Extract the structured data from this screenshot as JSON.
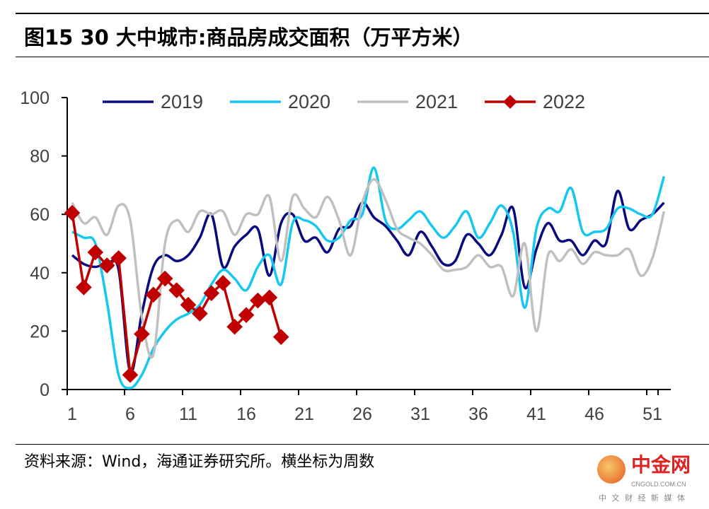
{
  "title": "图15 30 大中城市:商品房成交面积（万平方米）",
  "source": "资料来源：Wind，海通证券研究所。横坐标为周数",
  "watermark": {
    "name": "中金网",
    "url": "CNGOLD.COM.CN",
    "tagline": "中 文 财 经 新 媒 体"
  },
  "chart_data": {
    "type": "line",
    "title": "",
    "xlabel": "",
    "ylabel": "",
    "ylim": [
      0,
      100
    ],
    "xlim": [
      1,
      52
    ],
    "y_ticks": [
      "0",
      "20",
      "40",
      "60",
      "80",
      "100"
    ],
    "x_ticks": [
      "1",
      "6",
      "11",
      "16",
      "21",
      "26",
      "31",
      "36",
      "41",
      "46",
      "51"
    ],
    "legend": "top",
    "grid": false,
    "series": [
      {
        "name": "2019",
        "color": "#0a0a80",
        "marker": "none",
        "values": [
          46,
          43,
          42,
          43,
          41,
          6,
          26,
          42,
          46,
          44,
          46,
          52,
          60,
          42,
          49,
          53,
          55,
          39,
          57,
          60,
          51,
          52,
          47,
          55,
          56,
          64,
          59,
          56,
          51,
          46,
          54,
          49,
          43,
          44,
          53,
          50,
          46,
          53,
          62,
          35,
          48,
          57,
          51,
          51,
          46,
          51,
          50,
          68,
          55,
          58,
          60,
          64
        ]
      },
      {
        "name": "2020",
        "color": "#16c8f0",
        "marker": "none",
        "values": [
          54,
          52,
          50,
          30,
          5,
          0.5,
          5,
          14,
          20,
          24,
          26,
          29,
          36,
          41,
          38,
          34,
          42,
          46,
          36,
          57,
          58,
          56,
          51,
          52,
          58,
          60,
          76,
          58,
          55,
          58,
          61,
          56,
          52,
          56,
          61,
          52,
          57,
          63,
          54,
          28,
          55,
          62,
          61,
          69,
          54,
          54,
          55,
          62,
          62,
          60,
          60,
          73
        ]
      },
      {
        "name": "2021",
        "color": "#c0c0c0",
        "marker": "none",
        "values": [
          64,
          57,
          59,
          53,
          63,
          58,
          25,
          12,
          50,
          58,
          54,
          61,
          60,
          61,
          53,
          60,
          60,
          66,
          44,
          66,
          62,
          59,
          66,
          58,
          46,
          64,
          72,
          65,
          55,
          52,
          50,
          46,
          41,
          41,
          42,
          46,
          42,
          42,
          32,
          50,
          20,
          46,
          44,
          48,
          43,
          47,
          46,
          46,
          48,
          39,
          45,
          61
        ]
      },
      {
        "name": "2022",
        "color": "#c00000",
        "marker": "diamond",
        "values": [
          60.5,
          35,
          47,
          42.5,
          45,
          5,
          19,
          32.5,
          38,
          34,
          29,
          26,
          33,
          36.5,
          21.5,
          25.5,
          30.5,
          31.5,
          18
        ]
      }
    ]
  }
}
